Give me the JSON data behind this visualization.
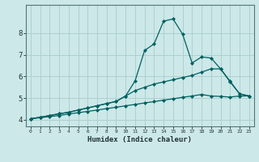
{
  "xlabel": "Humidex (Indice chaleur)",
  "bg_color": "#cce8e8",
  "grid_color": "#aacccc",
  "line_color": "#006060",
  "xlim": [
    -0.5,
    23.5
  ],
  "ylim": [
    3.7,
    9.3
  ],
  "xticks": [
    0,
    1,
    2,
    3,
    4,
    5,
    6,
    7,
    8,
    9,
    10,
    11,
    12,
    13,
    14,
    15,
    16,
    17,
    18,
    19,
    20,
    21,
    22,
    23
  ],
  "yticks": [
    4,
    5,
    6,
    7,
    8
  ],
  "line1_x": [
    0,
    1,
    2,
    3,
    4,
    5,
    6,
    7,
    8,
    9,
    10,
    11,
    12,
    13,
    14,
    15,
    16,
    17,
    18,
    19,
    20,
    21,
    22,
    23
  ],
  "line1_y": [
    4.05,
    4.12,
    4.2,
    4.28,
    4.35,
    4.45,
    4.55,
    4.65,
    4.75,
    4.85,
    5.1,
    5.8,
    7.2,
    7.5,
    8.55,
    8.65,
    7.95,
    6.62,
    6.9,
    6.85,
    6.35,
    5.75,
    5.2,
    5.1
  ],
  "line2_x": [
    0,
    1,
    2,
    3,
    4,
    5,
    6,
    7,
    8,
    9,
    10,
    11,
    12,
    13,
    14,
    15,
    16,
    17,
    18,
    19,
    20,
    21,
    22,
    23
  ],
  "line2_y": [
    4.05,
    4.12,
    4.2,
    4.28,
    4.35,
    4.45,
    4.55,
    4.65,
    4.75,
    4.85,
    5.1,
    5.35,
    5.5,
    5.65,
    5.75,
    5.85,
    5.95,
    6.05,
    6.2,
    6.35,
    6.35,
    5.78,
    5.2,
    5.1
  ],
  "line3_x": [
    0,
    1,
    2,
    3,
    4,
    5,
    6,
    7,
    8,
    9,
    10,
    11,
    12,
    13,
    14,
    15,
    16,
    17,
    18,
    19,
    20,
    21,
    22,
    23
  ],
  "line3_y": [
    4.05,
    4.1,
    4.15,
    4.2,
    4.27,
    4.33,
    4.39,
    4.45,
    4.52,
    4.58,
    4.65,
    4.71,
    4.78,
    4.84,
    4.91,
    4.97,
    5.04,
    5.1,
    5.17,
    5.1,
    5.08,
    5.05,
    5.1,
    5.1
  ],
  "marker": "D",
  "markersize": 2.0,
  "linewidth": 0.9
}
